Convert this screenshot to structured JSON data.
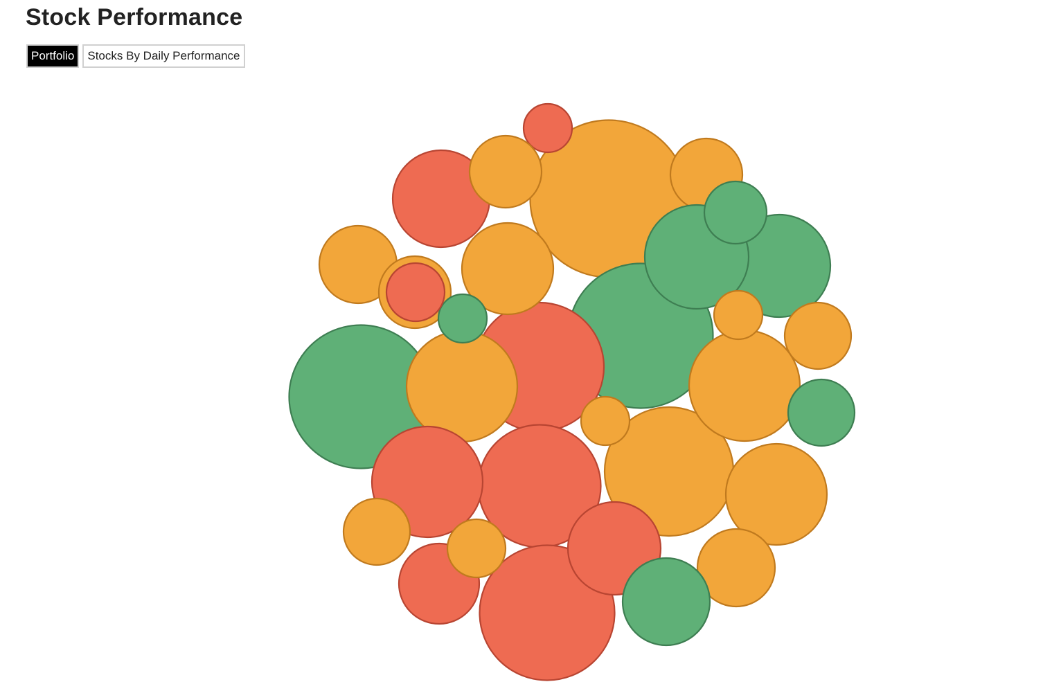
{
  "header": {
    "title": "Stock Performance"
  },
  "tabs": [
    {
      "label": "Portfolio",
      "active": true
    },
    {
      "label": "Stocks By Daily Performance",
      "active": false
    }
  ],
  "colors": {
    "up": {
      "fill": "#5fb077",
      "stroke": "#3e7e52"
    },
    "flat": {
      "fill": "#f2a63a",
      "stroke": "#c07a1e"
    },
    "down": {
      "fill": "#ee6b52",
      "stroke": "#b84532"
    }
  },
  "chart_data": {
    "type": "bubble",
    "value_encoding": "area",
    "color_encoding": "daily performance category",
    "points": [
      {
        "category": "flat",
        "value": 227
      },
      {
        "category": "down",
        "value": 70
      },
      {
        "category": "up",
        "value": 209
      },
      {
        "category": "down",
        "value": 140
      },
      {
        "category": "down",
        "value": 186
      },
      {
        "category": "flat",
        "value": 104
      },
      {
        "category": "flat",
        "value": 132
      },
      {
        "category": "flat",
        "value": 104
      },
      {
        "category": "up",
        "value": 207
      },
      {
        "category": "up",
        "value": 148
      },
      {
        "category": "down",
        "value": 177
      },
      {
        "category": "flat",
        "value": 160
      },
      {
        "category": "flat",
        "value": 186
      },
      {
        "category": "down",
        "value": 160
      },
      {
        "category": "up",
        "value": 150
      },
      {
        "category": "flat",
        "value": 146
      },
      {
        "category": "flat",
        "value": 160
      },
      {
        "category": "down",
        "value": 195
      },
      {
        "category": "flat",
        "value": 112
      },
      {
        "category": "flat",
        "value": 104
      },
      {
        "category": "down",
        "value": 134
      },
      {
        "category": "flat",
        "value": 96
      },
      {
        "category": "flat",
        "value": 112
      },
      {
        "category": "down",
        "value": 116
      },
      {
        "category": "up",
        "value": 126
      },
      {
        "category": "flat",
        "value": 96
      },
      {
        "category": "up",
        "value": 96
      },
      {
        "category": "up",
        "value": 90
      },
      {
        "category": "flat",
        "value": 84
      },
      {
        "category": "flat",
        "value": 70
      },
      {
        "category": "flat",
        "value": 70
      },
      {
        "category": "up",
        "value": 70
      },
      {
        "category": "down",
        "value": 84
      }
    ]
  }
}
